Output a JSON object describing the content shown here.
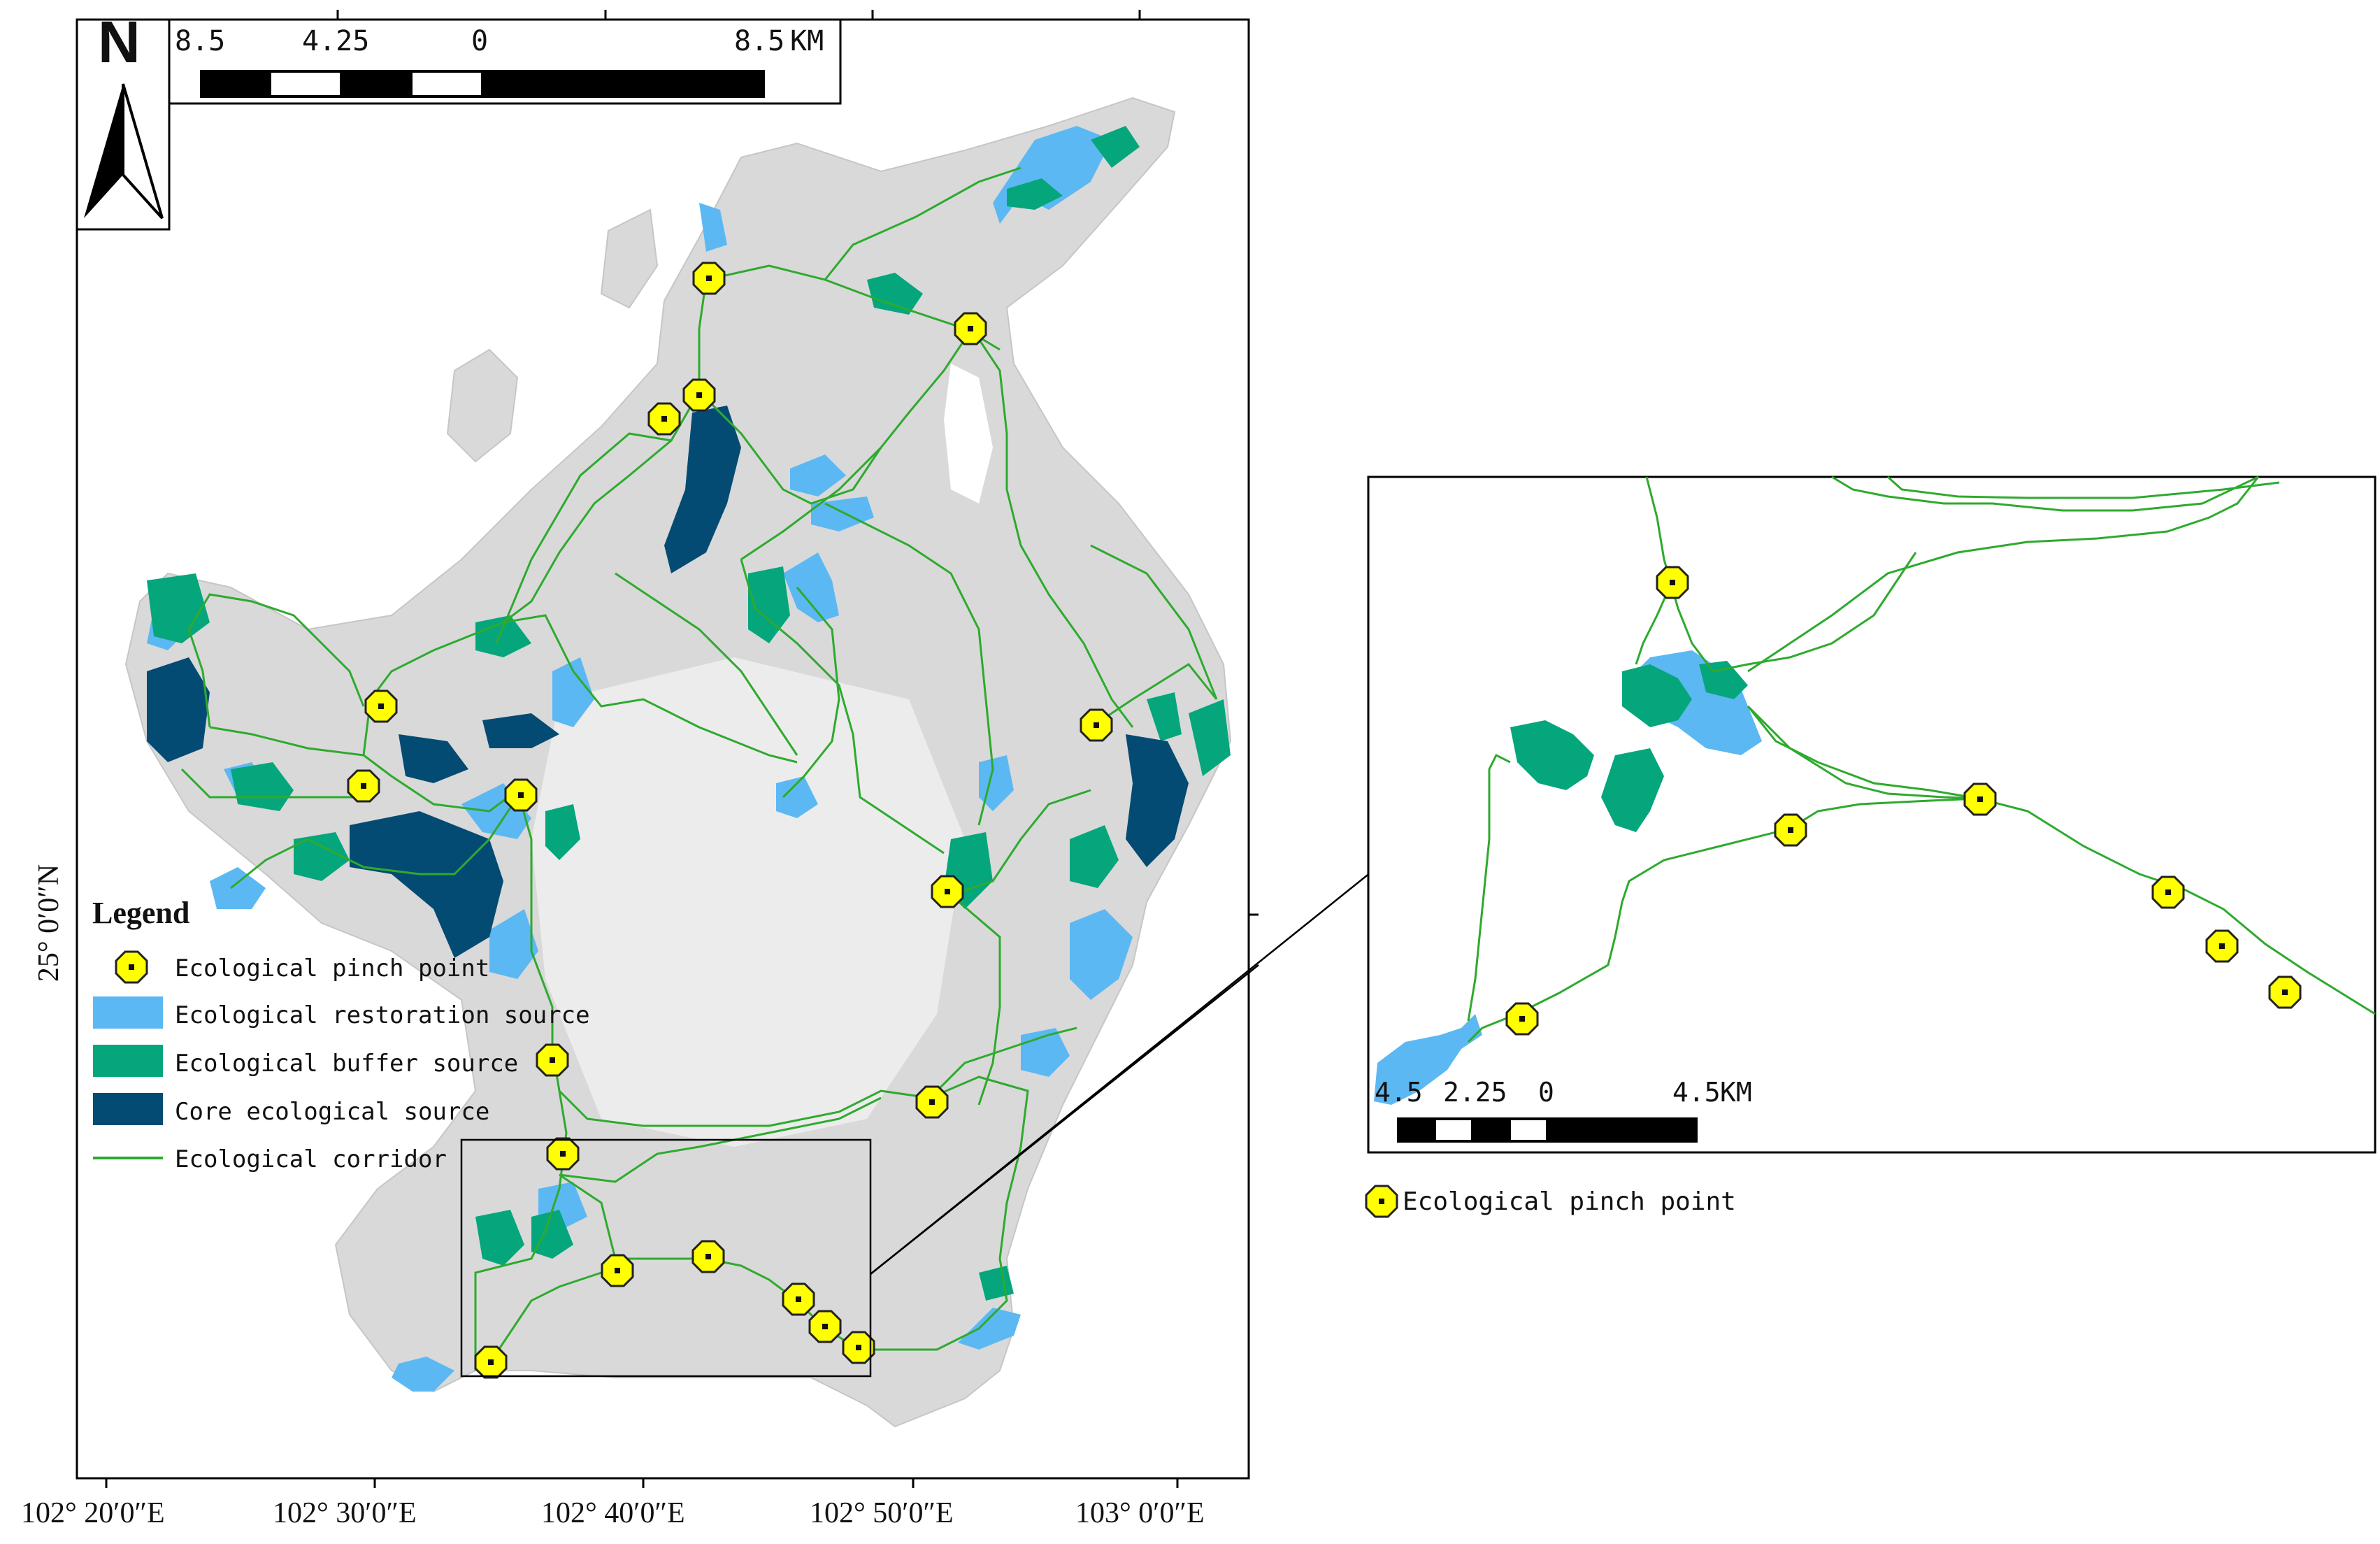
{
  "north_arrow": {
    "letter": "N"
  },
  "main_scale_bar": {
    "ticks": [
      "8.5",
      "4.25",
      "0",
      "8.5"
    ],
    "unit": "KM"
  },
  "inset_scale_bar": {
    "ticks": [
      "4.5",
      "2.25",
      "0",
      "4.5"
    ],
    "unit": "KM"
  },
  "longitude_labels": [
    "102° 20′0″E",
    "102° 30′0″E",
    "102° 40′0″E",
    "102° 50′0″E",
    "103° 0′0″E"
  ],
  "latitude_label": "25° 0′0″N",
  "legend": {
    "title": "Legend",
    "items": [
      {
        "label": "Ecological pinch point",
        "symbol": "pinch-point",
        "color": "#ffff00"
      },
      {
        "label": "Ecological restoration source",
        "symbol": "patch",
        "color": "#5cb8f3"
      },
      {
        "label": "Ecological buffer source",
        "symbol": "patch",
        "color": "#05a67c"
      },
      {
        "label": "Core ecological source",
        "symbol": "patch",
        "color": "#044b73"
      },
      {
        "label": "Ecological corridor",
        "symbol": "line",
        "color": "#2eaa2e"
      }
    ]
  },
  "inset_legend": {
    "label": "Ecological pinch point"
  },
  "colors": {
    "terrain": "#d9d9d9",
    "restoration": "#5cb8f3",
    "buffer": "#05a67c",
    "core": "#044b73",
    "corridor": "#2eaa2e",
    "pinch_fill": "#ffff00",
    "frame": "#000000"
  }
}
